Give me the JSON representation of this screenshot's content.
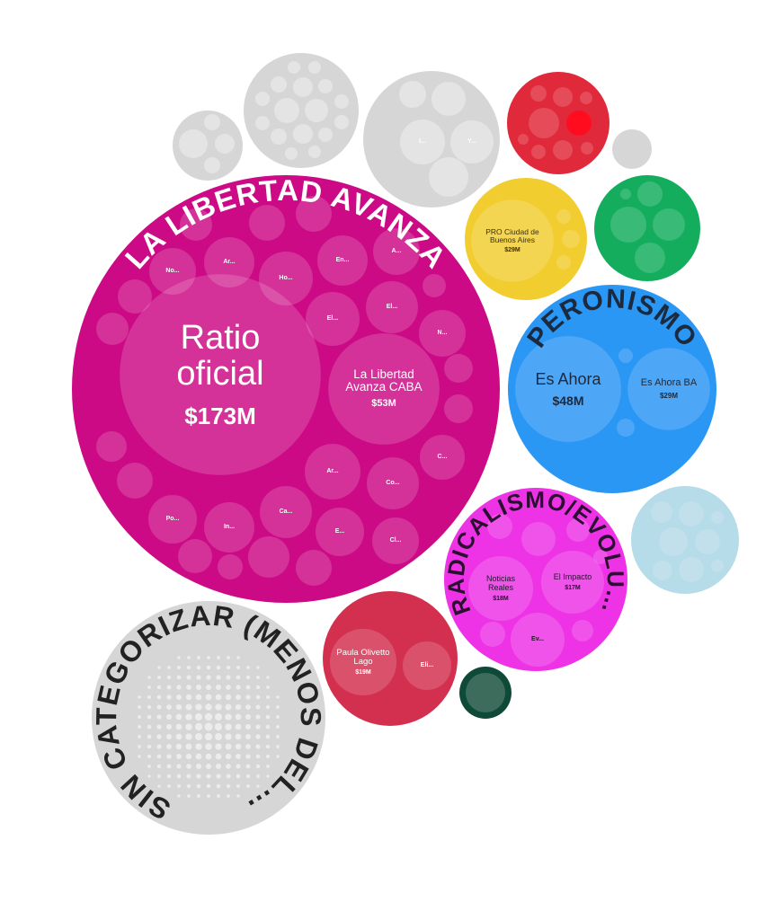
{
  "chart_data": {
    "type": "pack",
    "groups": [
      {
        "name": "LA LIBERTAD AVANZA",
        "color": "#cc0a86",
        "children": [
          {
            "label": "Ratio oficial",
            "value": 173,
            "value_label": "$173M"
          },
          {
            "label": "La Libertad Avanza CABA",
            "value": 53,
            "value_label": "$53M"
          },
          {
            "label": "No..."
          },
          {
            "label": "Ar..."
          },
          {
            "label": "Ho..."
          },
          {
            "label": "En..."
          },
          {
            "label": "A..."
          },
          {
            "label": "El..."
          },
          {
            "label": "El..."
          },
          {
            "label": "N..."
          },
          {
            "label": "C..."
          },
          {
            "label": "Co..."
          },
          {
            "label": "Ar..."
          },
          {
            "label": "Ca..."
          },
          {
            "label": "In..."
          },
          {
            "label": "Po..."
          },
          {
            "label": "E..."
          },
          {
            "label": "Cl..."
          }
        ]
      },
      {
        "color": "#d6d6d6",
        "children": []
      },
      {
        "color": "#d6d6d6",
        "children": []
      },
      {
        "color": "#d6d6d6",
        "children": [
          {
            "label": "I..."
          },
          {
            "label": "Y..."
          }
        ]
      },
      {
        "color": "#e0293a",
        "children": []
      },
      {
        "color": "#d6d6d6",
        "children": []
      },
      {
        "color": "#f2cd30",
        "children": [
          {
            "label": "PRO Ciudad de Buenos Aires",
            "value": 29,
            "value_label": "$29M"
          }
        ]
      },
      {
        "color": "#14ad5e",
        "children": []
      },
      {
        "name": "PERONISMO",
        "color": "#2b97f5",
        "children": [
          {
            "label": "Es Ahora",
            "value": 48,
            "value_label": "$48M"
          },
          {
            "label": "Es Ahora BA",
            "value": 29,
            "value_label": "$29M"
          }
        ]
      },
      {
        "color": "#b6dbe9",
        "children": []
      },
      {
        "name": "RADICALISMO/EVOLU…",
        "color": "#ee33e6",
        "children": [
          {
            "label": "Noticias Reales",
            "value": 18,
            "value_label": "$18M"
          },
          {
            "label": "El Impacto",
            "value": 17,
            "value_label": "$17M"
          },
          {
            "label": "Ev..."
          }
        ]
      },
      {
        "color": "#d3304f",
        "children": [
          {
            "label": "Paula Olivetto Lago",
            "value": 19,
            "value_label": "$19M"
          },
          {
            "label": "Eli..."
          }
        ]
      },
      {
        "color": "#0f4a39",
        "children": []
      },
      {
        "name": "SIN CATEGORIZAR (MENOS DEL…",
        "color": "#d6d6d6",
        "children": []
      }
    ]
  }
}
